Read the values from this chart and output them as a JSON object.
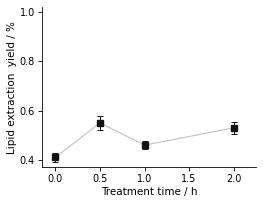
{
  "x": [
    0.0,
    0.5,
    1.0,
    2.0
  ],
  "y": [
    0.41,
    0.55,
    0.46,
    0.53
  ],
  "yerr": [
    0.02,
    0.03,
    0.015,
    0.025
  ],
  "xlabel": "Treatment time / h",
  "ylabel": "Lipid extraction  yield / %",
  "xlim": [
    -0.15,
    2.25
  ],
  "ylim": [
    0.37,
    1.02
  ],
  "yticks": [
    0.4,
    0.6,
    0.8,
    1.0
  ],
  "xticks": [
    0.0,
    0.5,
    1.0,
    1.5,
    2.0
  ],
  "marker": "s",
  "marker_color": "#111111",
  "line_color": "#c0c0c0",
  "marker_size": 4,
  "linewidth": 0.8,
  "capsize": 2.5,
  "tick_fontsize": 7,
  "label_fontsize": 7.5,
  "background_color": "#ffffff"
}
